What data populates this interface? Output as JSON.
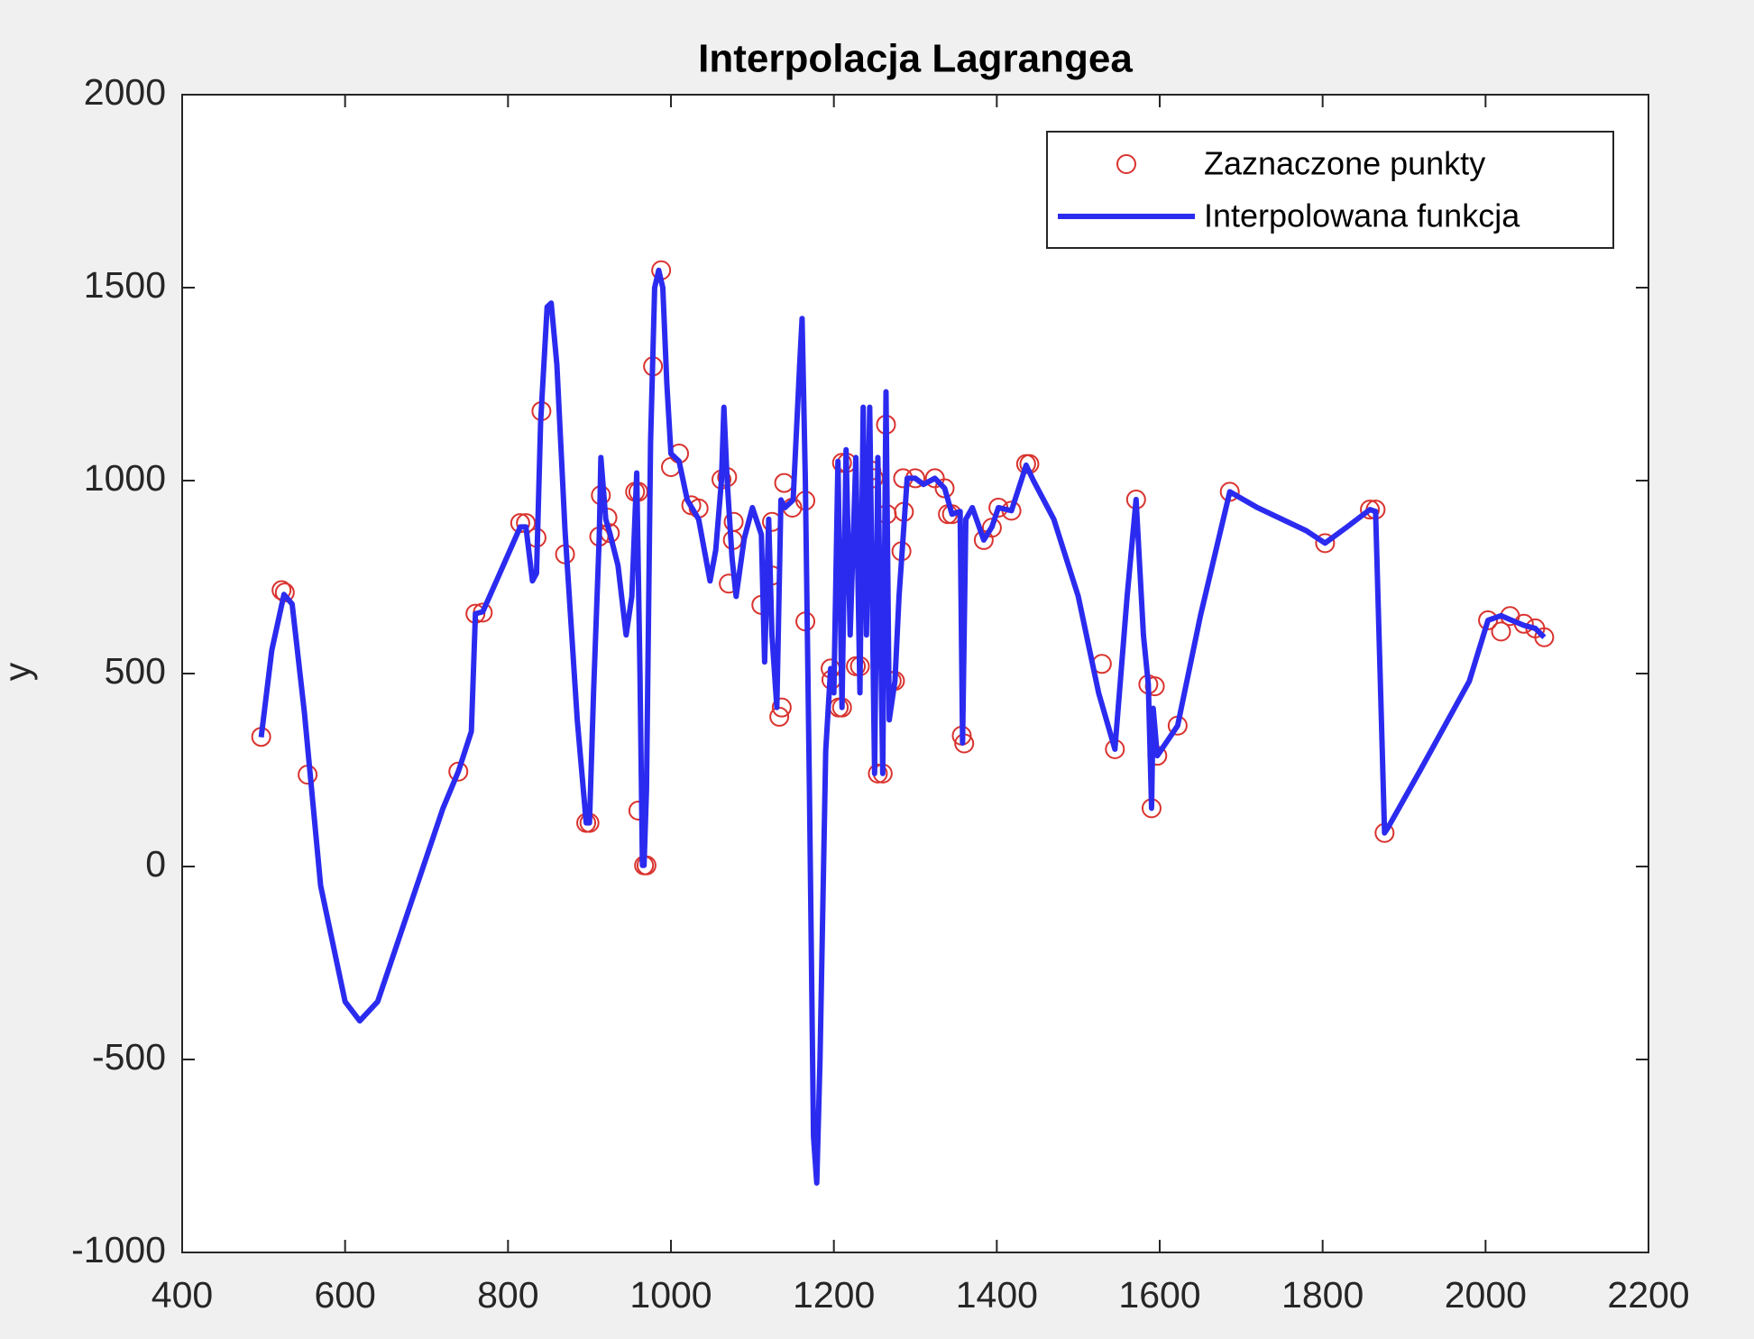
{
  "chart_data": {
    "type": "line",
    "title": "Interpolacja Lagrangea",
    "ylabel": "y",
    "xlim": [
      400,
      2200
    ],
    "xticks": [
      400,
      600,
      800,
      1000,
      1200,
      1400,
      1600,
      1800,
      2000,
      2200
    ],
    "ylim": [
      -1000,
      2000
    ],
    "yticks": [
      -1000,
      -500,
      0,
      500,
      1000,
      1500,
      2000
    ],
    "grid": false,
    "legend": "northeast",
    "series": [
      {
        "name": "Zaznaczone punkty",
        "type": "scatter",
        "color": "#d9332f",
        "x": [
          497,
          522,
          526,
          554,
          739,
          760,
          769,
          815,
          822,
          835,
          841,
          870,
          896,
          900,
          912,
          914,
          922,
          925,
          956,
          960,
          960,
          967,
          970,
          978,
          988,
          1000,
          1010,
          1025,
          1034,
          1062,
          1069,
          1071,
          1077,
          1076,
          1111,
          1124,
          1124,
          1133,
          1136,
          1139,
          1149,
          1165,
          1165,
          1196,
          1197,
          1206,
          1210,
          1210,
          1216,
          1227,
          1232,
          1246,
          1249,
          1254,
          1260,
          1264,
          1265,
          1271,
          1275,
          1285,
          1286,
          1283,
          1300,
          1324,
          1336,
          1340,
          1345,
          1357,
          1360,
          1384,
          1394,
          1402,
          1418,
          1436,
          1440,
          1529,
          1545,
          1571,
          1586,
          1594,
          1590,
          1597,
          1622,
          1686,
          1803,
          1858,
          1865,
          1876,
          2003,
          2019,
          2030,
          2047,
          2061,
          2072
        ],
        "y": [
          336,
          716,
          710,
          238,
          246,
          655,
          658,
          890,
          890,
          852,
          1180,
          809,
          113,
          113,
          855,
          962,
          904,
          864,
          971,
          971,
          145,
          3,
          3,
          1296,
          1545,
          1035,
          1070,
          936,
          928,
          1003,
          1009,
          733,
          893,
          846,
          678,
          893,
          754,
          388,
          412,
          994,
          930,
          948,
          635,
          513,
          484,
          412,
          412,
          1046,
          1046,
          519,
          519,
          1026,
          1006,
          241,
          241,
          1145,
          913,
          481,
          481,
          1006,
          919,
          817,
          1006,
          1006,
          980,
          913,
          913,
          339,
          319,
          846,
          878,
          930,
          922,
          1043,
          1043,
          525,
          304,
          951,
          472,
          467,
          151,
          287,
          365,
          971,
          838,
          925,
          925,
          87,
          638,
          609,
          649,
          629,
          617,
          594
        ]
      },
      {
        "name": "Interpolowana funkcja",
        "type": "line",
        "color": "#2b2bf0",
        "x": [
          497,
          510,
          525,
          535,
          550,
          570,
          600,
          618,
          640,
          680,
          720,
          739,
          755,
          760,
          769,
          790,
          815,
          822,
          830,
          835,
          840,
          848,
          853,
          860,
          870,
          885,
          896,
          900,
          905,
          912,
          914,
          920,
          925,
          935,
          945,
          952,
          958,
          962,
          965,
          967,
          970,
          975,
          980,
          985,
          990,
          995,
          1000,
          1010,
          1020,
          1034,
          1048,
          1055,
          1062,
          1065,
          1069,
          1075,
          1080,
          1090,
          1100,
          1111,
          1115,
          1120,
          1124,
          1130,
          1135,
          1140,
          1150,
          1158,
          1161,
          1165,
          1170,
          1175,
          1179,
          1183,
          1190,
          1196,
          1200,
          1205,
          1210,
          1215,
          1220,
          1227,
          1232,
          1236,
          1240,
          1244,
          1250,
          1254,
          1260,
          1264,
          1268,
          1275,
          1280,
          1290,
          1300,
          1310,
          1324,
          1336,
          1345,
          1355,
          1358,
          1362,
          1370,
          1384,
          1394,
          1402,
          1418,
          1430,
          1436,
          1445,
          1470,
          1500,
          1525,
          1545,
          1560,
          1571,
          1580,
          1586,
          1590,
          1592,
          1597,
          1622,
          1650,
          1686,
          1720,
          1780,
          1803,
          1830,
          1858,
          1865,
          1876,
          1880,
          1920,
          1980,
          2003,
          2019,
          2030,
          2047,
          2061,
          2072
        ],
        "y": [
          335,
          560,
          705,
          680,
          400,
          -50,
          -350,
          -400,
          -350,
          -100,
          150,
          246,
          350,
          655,
          660,
          760,
          880,
          880,
          740,
          760,
          1150,
          1450,
          1460,
          1300,
          870,
          380,
          113,
          113,
          450,
          855,
          1060,
          900,
          864,
          780,
          600,
          700,
          1020,
          500,
          3,
          3,
          200,
          1100,
          1500,
          1545,
          1500,
          1250,
          1070,
          1050,
          950,
          900,
          740,
          820,
          1000,
          1190,
          1000,
          800,
          700,
          850,
          930,
          860,
          530,
          900,
          600,
          412,
          950,
          930,
          950,
          1300,
          1420,
          1000,
          200,
          -700,
          -820,
          -500,
          300,
          513,
          450,
          1050,
          412,
          1080,
          600,
          1060,
          450,
          1190,
          600,
          1190,
          241,
          1060,
          241,
          1230,
          380,
          481,
          700,
          1006,
          1006,
          990,
          1006,
          980,
          913,
          920,
          320,
          900,
          930,
          846,
          880,
          930,
          922,
          1000,
          1040,
          1000,
          900,
          700,
          450,
          304,
          700,
          951,
          600,
          472,
          151,
          410,
          287,
          365,
          650,
          971,
          930,
          870,
          838,
          880,
          925,
          920,
          87,
          100,
          250,
          480,
          638,
          650,
          640,
          625,
          617,
          594
        ]
      }
    ]
  }
}
